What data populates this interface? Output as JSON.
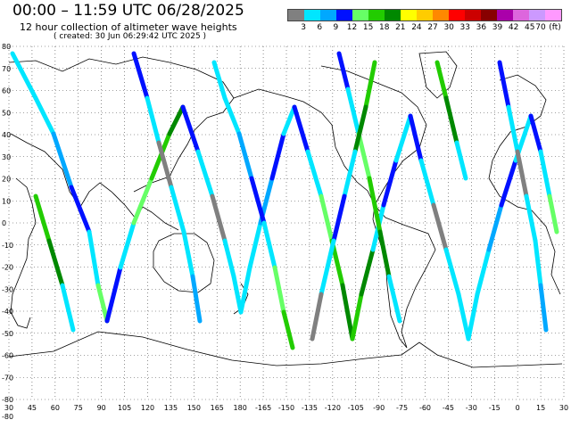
{
  "header": {
    "title": "00:00 – 11:59 UTC 06/28/2025",
    "subtitle": "12 hour collection of altimeter wave heights",
    "created": "( created: 30 Jun 06:29:42 UTC 2025 )"
  },
  "legend": {
    "unit": "(ft)",
    "colors": [
      "#808080",
      "#00e6ff",
      "#00a8ff",
      "#0010ff",
      "#66ff66",
      "#22cc00",
      "#008800",
      "#ffff00",
      "#ffcc00",
      "#ff8800",
      "#ff0000",
      "#cc0000",
      "#880000",
      "#aa00aa",
      "#dd66dd",
      "#cc99ff",
      "#ff99ff"
    ],
    "labels": [
      "3",
      "6",
      "9",
      "12",
      "15",
      "18",
      "21",
      "24",
      "27",
      "30",
      "33",
      "36",
      "39",
      "42",
      "45",
      "70"
    ]
  },
  "map": {
    "lon_labels": [
      "30",
      "45",
      "60",
      "75",
      "90",
      "105",
      "120",
      "135",
      "150",
      "165",
      "180",
      "-165",
      "-150",
      "-135",
      "-120",
      "-105",
      "-90",
      "-75",
      "-60",
      "-45",
      "-30",
      "-15",
      "0",
      "15",
      "30"
    ],
    "lat_labels": [
      "80",
      "70",
      "60",
      "50",
      "40",
      "30",
      "20",
      "10",
      "0",
      "-10",
      "-20",
      "-30",
      "-40",
      "-50",
      "-60",
      "-70",
      "-80"
    ],
    "colors": {
      "coast": "#000000",
      "grid": "#444444",
      "track_fill": "#3ad2f0"
    }
  }
}
